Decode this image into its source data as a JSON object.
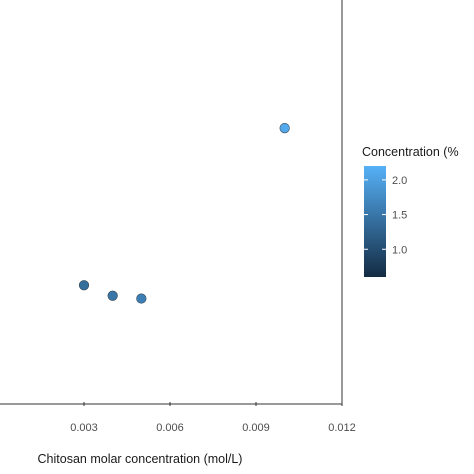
{
  "chart_data": {
    "type": "scatter",
    "title": "",
    "xlabel": "Chitosan molar concentration (mol/L)",
    "ylabel": "",
    "x_ticks": [
      "0.003",
      "0.006",
      "0.009",
      "0.012"
    ],
    "xlim": [
      0.0,
      0.012
    ],
    "grid": false,
    "points": [
      {
        "x": 0.003,
        "concentration": 1.4
      },
      {
        "x": 0.004,
        "concentration": 1.5
      },
      {
        "x": 0.005,
        "concentration": 1.6
      },
      {
        "x": 0.01,
        "concentration": 2.1
      }
    ],
    "point_plot_y_fraction": [
      0.711,
      0.737,
      0.744,
      0.322
    ],
    "colorbar": {
      "title": "Concentration (%",
      "ticks": [
        "2.0",
        "1.5",
        "1.0"
      ],
      "tick_values": [
        2.0,
        1.5,
        1.0
      ],
      "range": [
        0.6,
        2.2
      ],
      "color_low": "#132B43",
      "color_high": "#56B1F7",
      "placement": "right"
    }
  }
}
